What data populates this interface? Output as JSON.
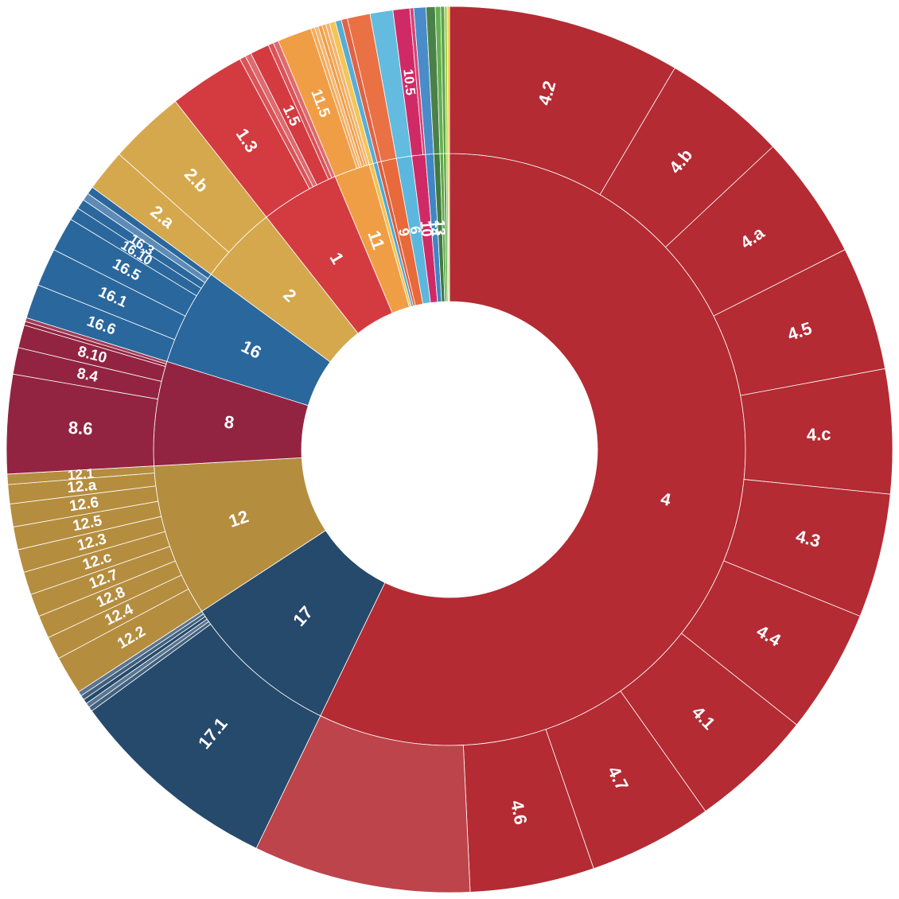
{
  "chart_data": {
    "type": "sunburst",
    "background": "#ffffff",
    "segment_border_color": "#ffffff",
    "label_color": "#ffffff",
    "inner_ring": [
      {
        "id": "4",
        "label": "4",
        "value": 206,
        "color": "#b42b33"
      },
      {
        "id": "17",
        "label": "17",
        "value": 31,
        "color": "#264a6b"
      },
      {
        "id": "12",
        "label": "12",
        "value": 30,
        "color": "#b58d3f"
      },
      {
        "id": "8",
        "label": "8",
        "value": 20.5,
        "color": "#922442"
      },
      {
        "id": "16",
        "label": "16",
        "value": 19,
        "color": "#2a679d"
      },
      {
        "id": "2",
        "label": "2",
        "value": 15.5,
        "color": "#d5a84e"
      },
      {
        "id": "1",
        "label": "1",
        "value": 15.5,
        "color": "#d43b41"
      },
      {
        "id": "11",
        "label": "11",
        "value": 7,
        "color": "#f09e45"
      },
      {
        "id": "7",
        "label": "",
        "value": 0.8,
        "color": "#f4c24d"
      },
      {
        "id": "6",
        "label": "",
        "value": 0.8,
        "color": "#4fa9d4"
      },
      {
        "id": "5",
        "label": "",
        "value": 0.8,
        "color": "#e05a3b"
      },
      {
        "id": "9",
        "label": "9",
        "value": 3,
        "color": "#e8693a"
      },
      {
        "id": "6b",
        "label": "6",
        "value": 3,
        "color": "#5bb7dd"
      },
      {
        "id": "10",
        "label": "10",
        "value": 2.7,
        "color": "#d02a66"
      },
      {
        "id": "14",
        "label": "14",
        "value": 1.6,
        "color": "#3f86c6"
      },
      {
        "id": "13",
        "label": "13",
        "value": 1.2,
        "color": "#407a3e"
      },
      {
        "id": "15",
        "label": "",
        "value": 0.7,
        "color": "#5dab45"
      },
      {
        "id": "3",
        "label": "",
        "value": 0.5,
        "color": "#4f9e3d"
      },
      {
        "id": "x1",
        "label": "",
        "value": 0.35,
        "color": "#a6c843"
      },
      {
        "id": "x2",
        "label": "",
        "value": 0.3,
        "color": "#f0c542"
      }
    ],
    "outer_ring": {
      "4": [
        {
          "label": "4.2",
          "value": 30
        },
        {
          "label": "4.b",
          "value": 16
        },
        {
          "label": "4.a",
          "value": 16
        },
        {
          "label": "4.5",
          "value": 16
        },
        {
          "label": "4.c",
          "value": 16
        },
        {
          "label": "4.3",
          "value": 16
        },
        {
          "label": "4.4",
          "value": 16
        },
        {
          "label": "4.1",
          "value": 16
        },
        {
          "label": "4.7",
          "value": 16
        },
        {
          "label": "4.6",
          "value": 16
        },
        {
          "label": "",
          "value": 28
        }
      ],
      "17": [
        {
          "label": "17.1",
          "value": 28
        },
        {
          "label": "",
          "value": 0.6
        },
        {
          "label": "",
          "value": 0.6
        },
        {
          "label": "",
          "value": 0.6
        },
        {
          "label": "",
          "value": 0.6
        },
        {
          "label": "",
          "value": 0.6
        }
      ],
      "12": [
        {
          "label": "12.2",
          "value": 5.2
        },
        {
          "label": "12.4",
          "value": 3.1
        },
        {
          "label": "12.8",
          "value": 3.1
        },
        {
          "label": "12.7",
          "value": 3.1
        },
        {
          "label": "12.c",
          "value": 3.1
        },
        {
          "label": "12.3",
          "value": 3.1
        },
        {
          "label": "12.5",
          "value": 3.1
        },
        {
          "label": "12.6",
          "value": 3.1
        },
        {
          "label": "12.a",
          "value": 2.6
        },
        {
          "label": "12.1",
          "value": 1.4
        }
      ],
      "8": [
        {
          "label": "8.6",
          "value": 13
        },
        {
          "label": "8.4",
          "value": 3.5
        },
        {
          "label": "8.10",
          "value": 3
        },
        {
          "label": "",
          "value": 0.5
        },
        {
          "label": "",
          "value": 0.5
        }
      ],
      "16": [
        {
          "label": "16.6",
          "value": 4.5
        },
        {
          "label": "16.1",
          "value": 5
        },
        {
          "label": "16.5",
          "value": 4.5
        },
        {
          "label": "16.10",
          "value": 1.7
        },
        {
          "label": "16.3",
          "value": 1.3
        },
        {
          "label": "",
          "value": 1
        },
        {
          "label": "",
          "value": 1
        }
      ],
      "2": [
        {
          "label": "2.a",
          "value": 5.5
        },
        {
          "label": "2.b",
          "value": 10
        }
      ],
      "1": [
        {
          "label": "1.3",
          "value": 10
        },
        {
          "label": "",
          "value": 0.8
        },
        {
          "label": "",
          "value": 0.8
        },
        {
          "label": "1.5",
          "value": 2.5
        },
        {
          "label": "",
          "value": 0.7
        },
        {
          "label": "",
          "value": 0.7
        }
      ],
      "11": [
        {
          "label": "11.5",
          "value": 4.5
        },
        {
          "label": "",
          "value": 0.5
        },
        {
          "label": "",
          "value": 0.5
        },
        {
          "label": "",
          "value": 0.5
        },
        {
          "label": "",
          "value": 0.5
        },
        {
          "label": "",
          "value": 0.5
        }
      ],
      "10": [
        {
          "label": "10.5",
          "value": 2.2
        },
        {
          "label": "",
          "value": 0.5
        }
      ]
    }
  }
}
